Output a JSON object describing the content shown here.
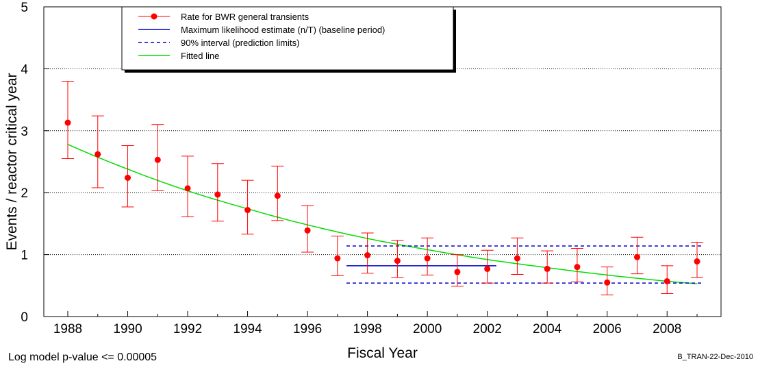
{
  "chart_data": {
    "type": "scatter",
    "xlabel": "Fiscal Year",
    "ylabel": "Events / reactor critical year",
    "xlim": [
      1987.2,
      2009.8
    ],
    "ylim": [
      0,
      5
    ],
    "xticks": [
      1988,
      1990,
      1992,
      1994,
      1996,
      1998,
      2000,
      2002,
      2004,
      2006,
      2008
    ],
    "yticks": [
      0,
      1,
      2,
      3,
      4,
      5
    ],
    "grid": "horizontal dotted",
    "legend_position": "top-left",
    "series": [
      {
        "name": "Rate for BWR general transients",
        "kind": "points-with-errorbars",
        "color": "#ff0000",
        "x": [
          1988,
          1989,
          1990,
          1991,
          1992,
          1993,
          1994,
          1995,
          1996,
          1997,
          1998,
          1999,
          2000,
          2001,
          2002,
          2003,
          2004,
          2005,
          2006,
          2007,
          2008,
          2009
        ],
        "y": [
          3.13,
          2.62,
          2.24,
          2.53,
          2.07,
          1.97,
          1.72,
          1.95,
          1.39,
          0.94,
          0.99,
          0.9,
          0.94,
          0.72,
          0.77,
          0.94,
          0.77,
          0.8,
          0.55,
          0.96,
          0.57,
          0.89
        ],
        "lower": [
          2.55,
          2.08,
          1.77,
          2.03,
          1.61,
          1.54,
          1.33,
          1.55,
          1.04,
          0.66,
          0.7,
          0.63,
          0.67,
          0.49,
          0.54,
          0.68,
          0.54,
          0.56,
          0.35,
          0.69,
          0.37,
          0.63
        ],
        "upper": [
          3.8,
          3.24,
          2.76,
          3.1,
          2.59,
          2.47,
          2.2,
          2.43,
          1.79,
          1.3,
          1.35,
          1.23,
          1.27,
          1.0,
          1.07,
          1.27,
          1.06,
          1.1,
          0.8,
          1.28,
          0.82,
          1.2
        ]
      },
      {
        "name": "Maximum likelihood estimate (n/T) (baseline period)",
        "kind": "hline",
        "color": "#0000cc",
        "x": [
          1997.3,
          2002.3
        ],
        "y": 0.82
      },
      {
        "name": "90% interval (prediction limits)",
        "kind": "dashed-band",
        "color": "#0000cc",
        "x": [
          1997.3,
          2009.2
        ],
        "lower": 0.54,
        "upper": 1.14
      },
      {
        "name": "Fitted line",
        "kind": "line",
        "color": "#00dd00",
        "x": [
          1988,
          1990,
          1992,
          1994,
          1996,
          1998,
          2000,
          2002,
          2004,
          2006,
          2008,
          2009
        ],
        "y": [
          2.78,
          2.38,
          2.03,
          1.74,
          1.48,
          1.26,
          1.08,
          0.92,
          0.79,
          0.67,
          0.57,
          0.53
        ]
      }
    ]
  },
  "footer": {
    "pvalue_text": "Log model p-value <= 0.00005",
    "stamp_text": "B_TRAN-22-Dec-2010"
  }
}
